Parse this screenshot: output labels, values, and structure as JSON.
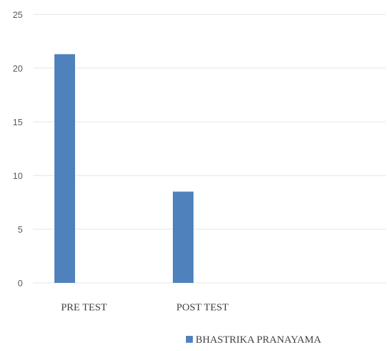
{
  "chart_data": {
    "type": "bar",
    "categories": [
      "PRE TEST",
      "POST TEST",
      ""
    ],
    "series": [
      {
        "name": "BHASTRIKA PRANAYAMA",
        "values": [
          21.3,
          8.5,
          null
        ],
        "color": "#4f81bd"
      }
    ],
    "title": "",
    "xlabel": "",
    "ylabel": "",
    "ylim": [
      0,
      25
    ],
    "yticks": [
      0,
      5,
      10,
      15,
      20,
      25
    ],
    "grid": true,
    "gridColor": "#e3e3e3",
    "legend": "bottom"
  }
}
